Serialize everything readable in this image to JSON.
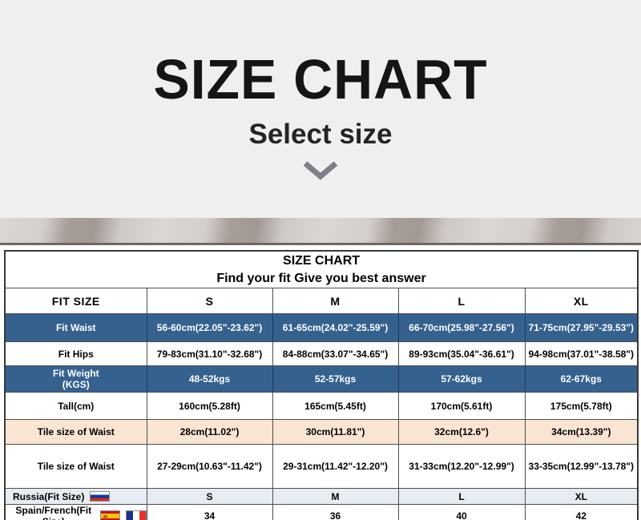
{
  "hero": {
    "title": "SIZE CHART",
    "subtitle": "Select size",
    "chevron_icon": "chevron-down"
  },
  "table": {
    "title": "SIZE CHART",
    "subtitle": "Find your fit Give you best answer",
    "header": {
      "label": "FIT SIZE",
      "sizes": [
        "S",
        "M",
        "L",
        "XL"
      ]
    },
    "rows": [
      {
        "name": "fit-waist",
        "label": "Fit Waist",
        "style": "blue",
        "values": [
          "56-60cm(22.05\"-23.62\")",
          "61-65cm(24.02\"-25.59\")",
          "66-70cm(25.98\"-27.56\")",
          "71-75cm(27.95\"-29.53\")"
        ]
      },
      {
        "name": "fit-hips",
        "label": "Fit Hips",
        "style": "plain",
        "values": [
          "79-83cm(31.10\"-32.68\")",
          "84-88cm(33.07\"-34.65\")",
          "89-93cm(35.04\"-36.61\")",
          "94-98cm(37.01\"-38.58\")"
        ]
      },
      {
        "name": "fit-weight",
        "label": "Fit Weight",
        "sublabel": "(KGS)",
        "style": "blue",
        "values": [
          "48-52kgs",
          "52-57kgs",
          "57-62kgs",
          "62-67kgs"
        ]
      },
      {
        "name": "tall",
        "label": "Tall(cm)",
        "style": "plain",
        "values": [
          "160cm(5.28ft)",
          "165cm(5.45ft)",
          "170cm(5.61ft)",
          "175cm(5.78ft)"
        ]
      },
      {
        "name": "tile-size-of-waist-flat",
        "label": "Tile size of Waist",
        "style": "peach",
        "values": [
          "28cm(11.02\")",
          "30cm(11.81\")",
          "32cm(12.6\")",
          "34cm(13.39\")"
        ]
      },
      {
        "name": "tile-size-of-waist-range",
        "label": "Tile size of Waist",
        "style": "plain",
        "values": [
          "27-29cm(10.63\"-11.42\")",
          "29-31cm(11.42\"-12.20\")",
          "31-33cm(12.20\"-12.99\")",
          "33-35cm(12.99\"-13.78\")"
        ]
      },
      {
        "name": "russia-fit-size",
        "label": "Russia(Fit Size)",
        "style": "tint",
        "flags": [
          "russia"
        ],
        "values": [
          "S",
          "M",
          "L",
          "XL"
        ]
      },
      {
        "name": "spain-french-fit-size",
        "label": "Spain/French(Fit Size)",
        "style": "plain",
        "flags": [
          "spain",
          "france"
        ],
        "values": [
          "34",
          "36",
          "40",
          "42"
        ]
      }
    ]
  },
  "colors": {
    "hero_background": "#f0eff0",
    "accent_blue_row": "#35618f",
    "peach_row": "#fae5d3",
    "tint_row": "#e7ecf3",
    "chevron": "#7f7f89"
  },
  "chart_data": {
    "type": "table",
    "title": "SIZE CHART",
    "subtitle": "Find your fit Give you best answer",
    "columns": [
      "FIT SIZE",
      "S",
      "M",
      "L",
      "XL"
    ],
    "rows": [
      [
        "Fit Waist",
        "56-60cm(22.05\"-23.62\")",
        "61-65cm(24.02\"-25.59\")",
        "66-70cm(25.98\"-27.56\")",
        "71-75cm(27.95\"-29.53\")"
      ],
      [
        "Fit Hips",
        "79-83cm(31.10\"-32.68\")",
        "84-88cm(33.07\"-34.65\")",
        "89-93cm(35.04\"-36.61\")",
        "94-98cm(37.01\"-38.58\")"
      ],
      [
        "Fit Weight (KGS)",
        "48-52kgs",
        "52-57kgs",
        "57-62kgs",
        "62-67kgs"
      ],
      [
        "Tall(cm)",
        "160cm(5.28ft)",
        "165cm(5.45ft)",
        "170cm(5.61ft)",
        "175cm(5.78ft)"
      ],
      [
        "Tile size of Waist",
        "28cm(11.02\")",
        "30cm(11.81\")",
        "32cm(12.6\")",
        "34cm(13.39\")"
      ],
      [
        "Tile size of Waist",
        "27-29cm(10.63\"-11.42\")",
        "29-31cm(11.42\"-12.20\")",
        "31-33cm(12.20\"-12.99\")",
        "33-35cm(12.99\"-13.78\")"
      ],
      [
        "Russia(Fit Size)",
        "S",
        "M",
        "L",
        "XL"
      ],
      [
        "Spain/French(Fit Size)",
        "34",
        "36",
        "40",
        "42"
      ]
    ]
  }
}
